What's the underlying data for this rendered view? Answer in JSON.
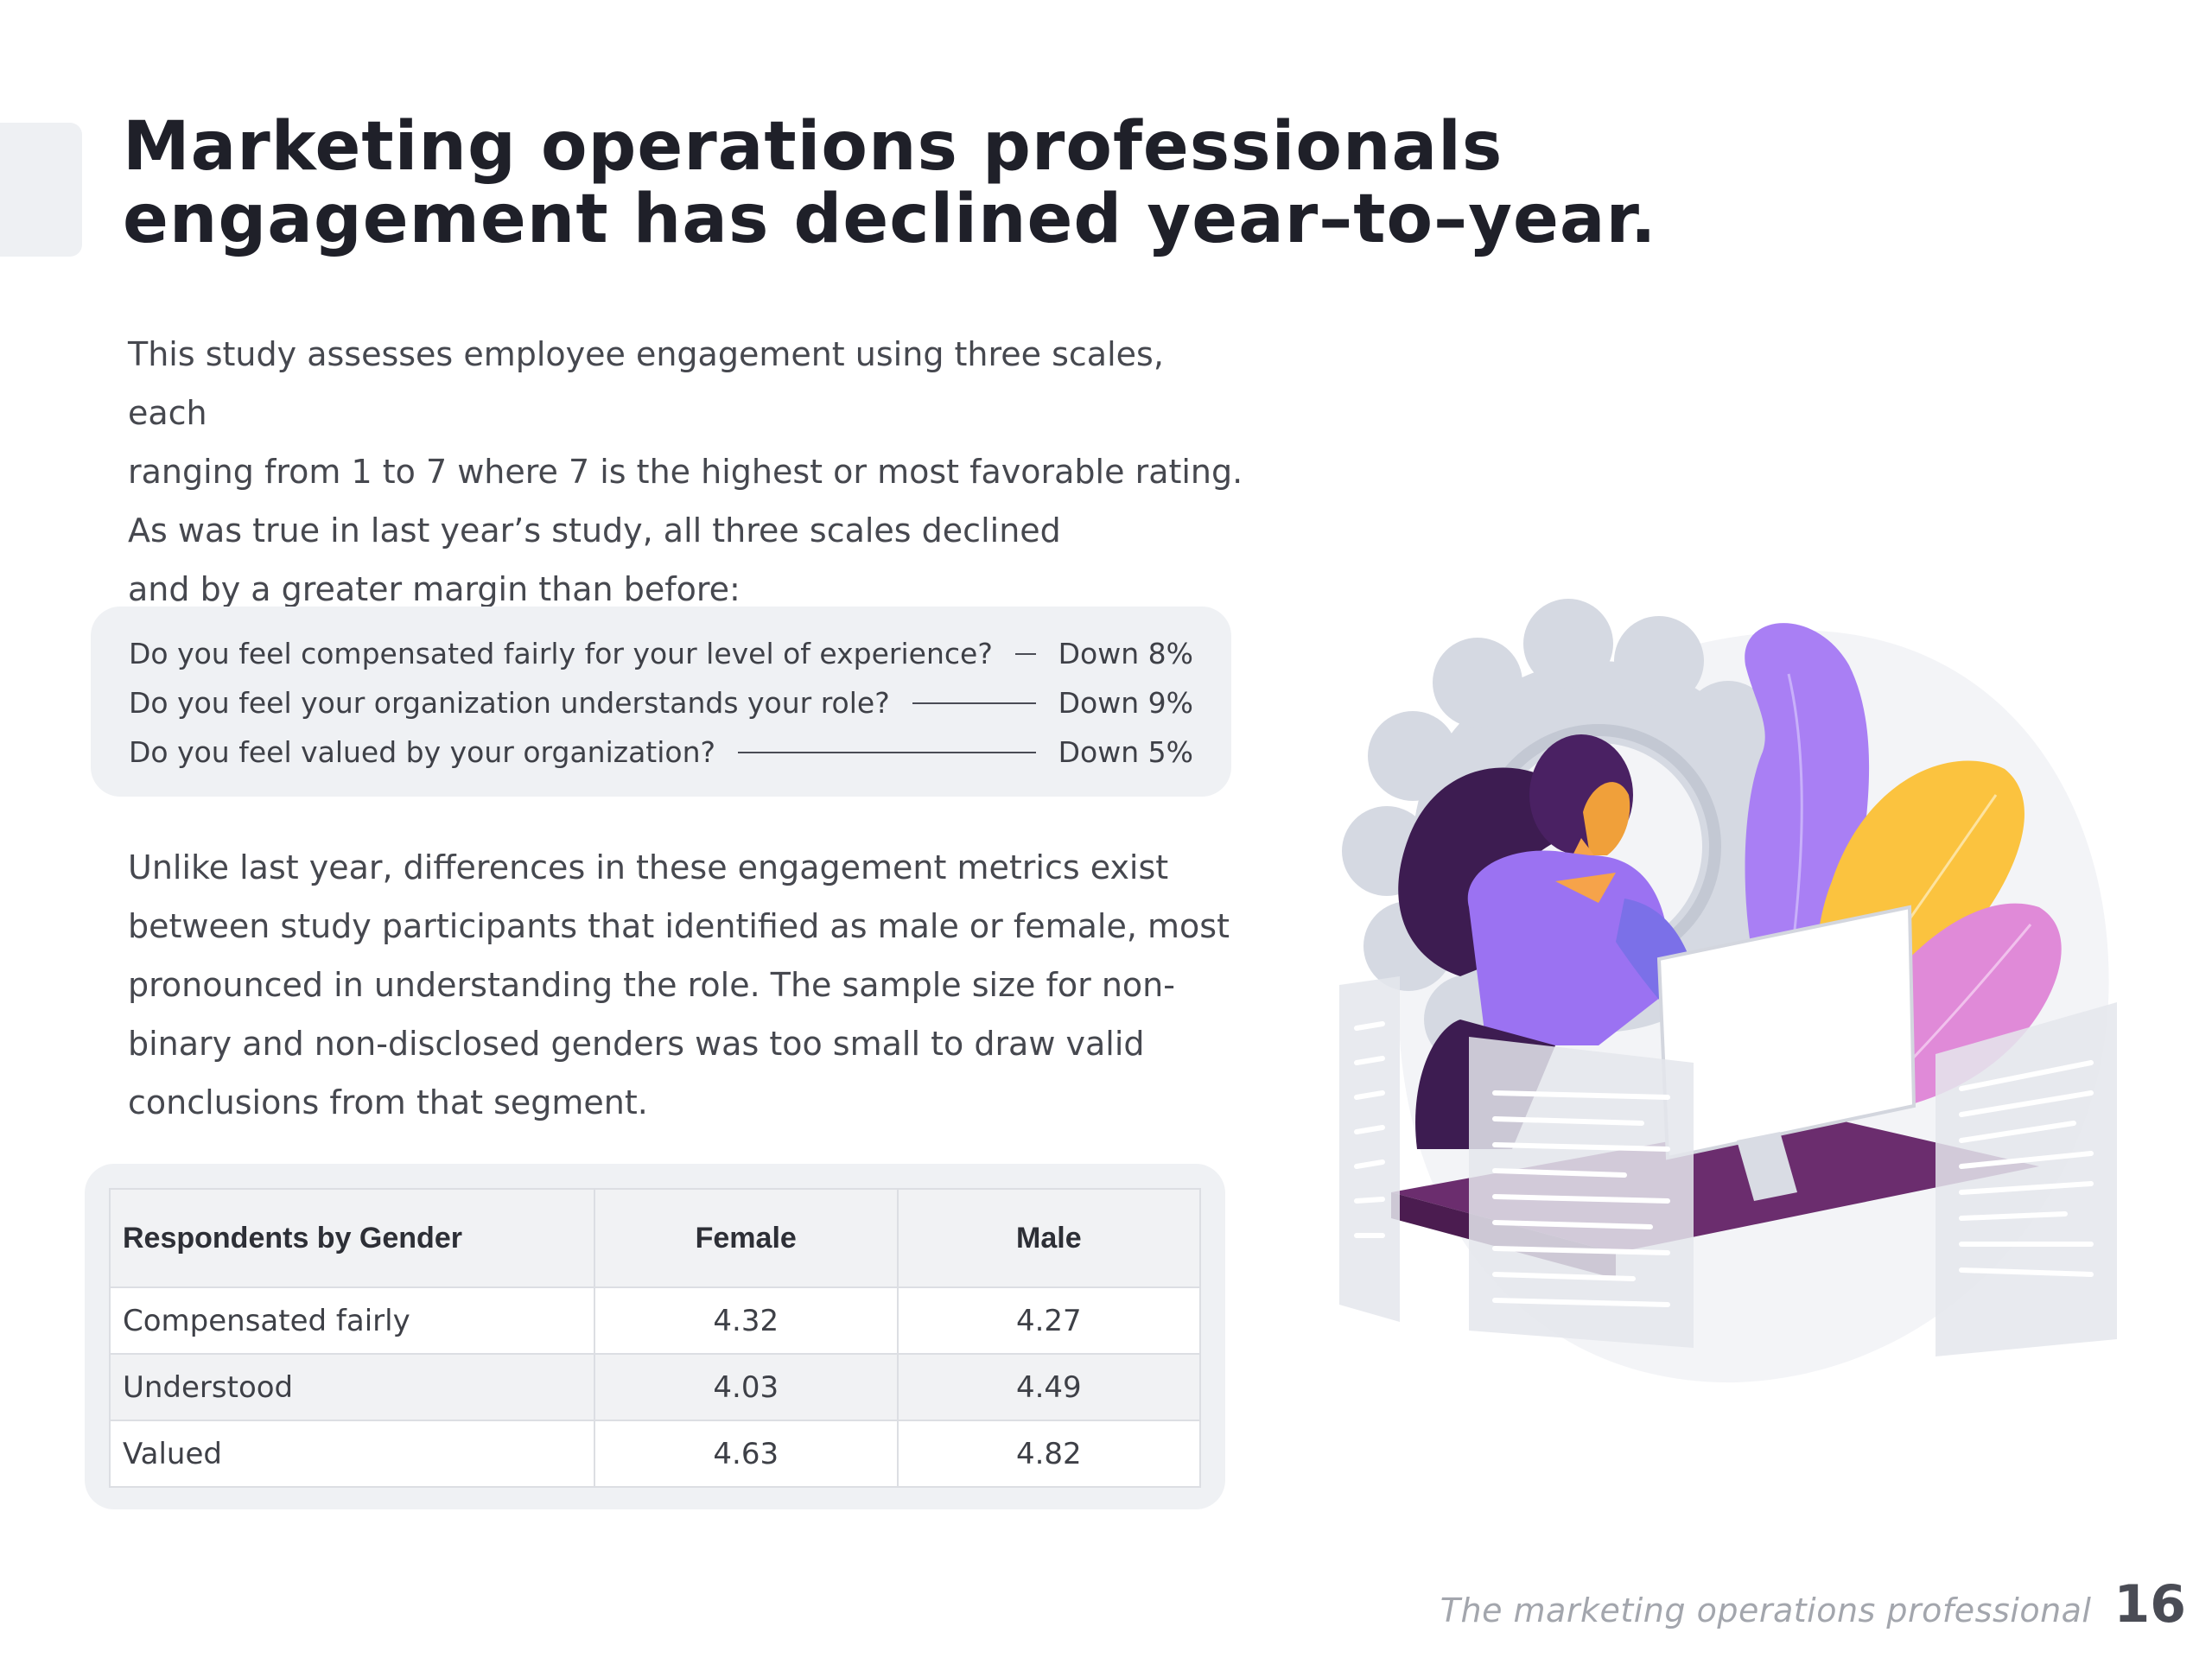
{
  "title": {
    "line1": "Marketing operations professionals",
    "line2": "engagement has declined year–to–year."
  },
  "intro": {
    "line1": "This study assesses employee engagement using three scales, each",
    "line2": "ranging from 1 to 7 where 7 is the highest or most favorable rating.",
    "line3": "As was true in last year’s study, all three scales declined",
    "line4": "and by a greater margin than before:"
  },
  "questions": [
    {
      "text": "Do you feel compensated fairly for your level of experience?",
      "value": "Down 8%"
    },
    {
      "text": "Do you feel your organization understands your role?",
      "value": "Down 9%"
    },
    {
      "text": "Do you feel valued by your organization?",
      "value": "Down 5%"
    }
  ],
  "body": {
    "line1": "Unlike last year, differences in these engagement metrics exist",
    "line2": "between study participants that identified as male or female, most",
    "line3": "pronounced in understanding the role. The sample size for non-",
    "line4": "binary and non-disclosed genders was too small to draw valid",
    "line5": "conclusions from that segment."
  },
  "table": {
    "headers": [
      "Respondents by Gender",
      "Female",
      "Male"
    ],
    "rows": [
      [
        "Compensated fairly",
        "4.32",
        "4.27"
      ],
      [
        "Understood",
        "4.03",
        "4.49"
      ],
      [
        "Valued",
        "4.63",
        "4.82"
      ]
    ]
  },
  "illustration": {
    "icon": "woman-at-computer-illustration",
    "colors": {
      "purple": "#9b72f2",
      "yellow": "#fbc33f",
      "pink": "#e08ad8",
      "desk": "#6b2d6e",
      "gear": "#d5d9e2"
    }
  },
  "footer": {
    "text": "The marketing operations professional",
    "page_number": "16"
  }
}
